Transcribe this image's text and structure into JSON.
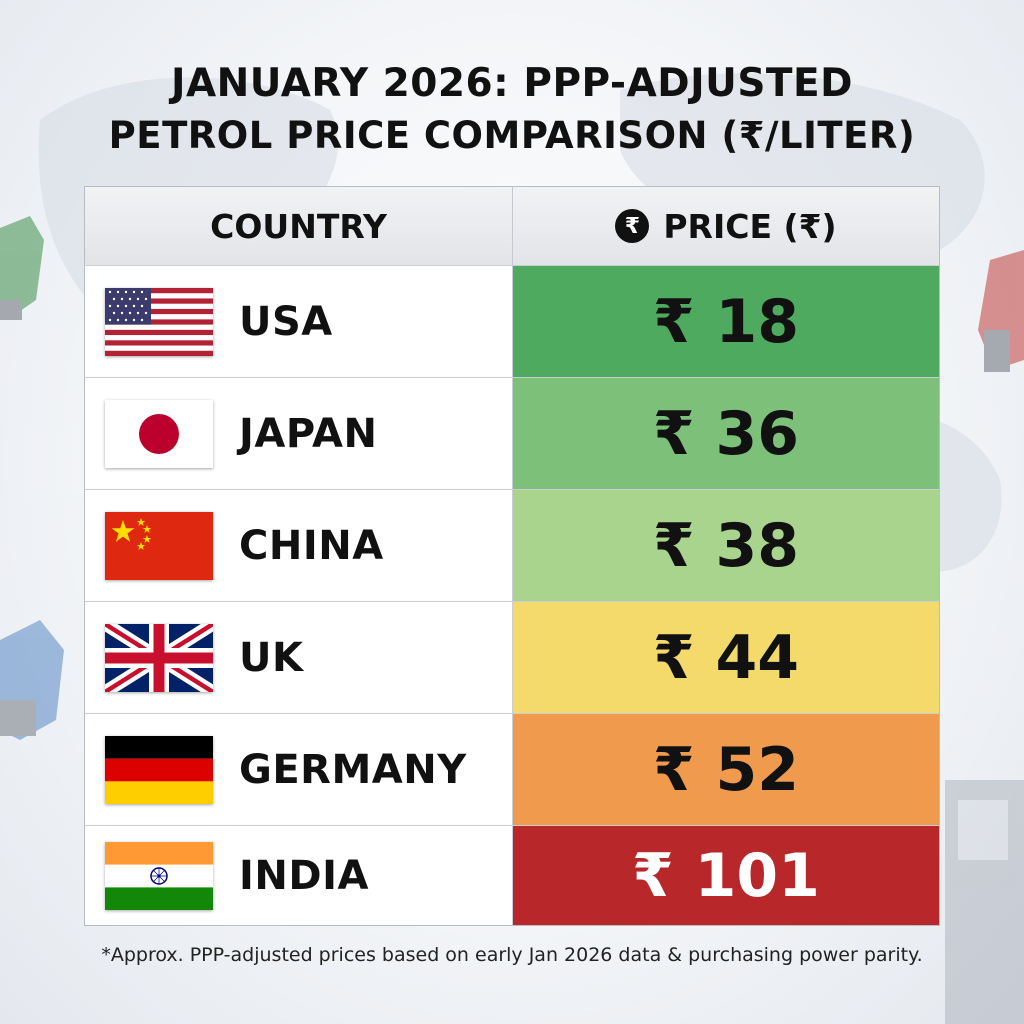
{
  "title_line1": "JANUARY 2026: PPP-ADJUSTED",
  "title_line2": "PETROL PRICE COMPARISON (₹/LITER)",
  "header": {
    "country": "COUNTRY",
    "price": "PRICE (₹)",
    "price_icon": "₹",
    "price_icon_name": "rupee-circle-icon"
  },
  "rows": [
    {
      "country": "USA",
      "price_label": "₹ 18",
      "flag": "usa-flag-icon",
      "color": "#4daa5e"
    },
    {
      "country": "JAPAN",
      "price_label": "₹ 36",
      "flag": "japan-flag-icon",
      "color": "#7cc07a"
    },
    {
      "country": "CHINA",
      "price_label": "₹ 38",
      "flag": "china-flag-icon",
      "color": "#a9d48e"
    },
    {
      "country": "UK",
      "price_label": "₹ 44",
      "flag": "uk-flag-icon",
      "color": "#f3da6b"
    },
    {
      "country": "GERMANY",
      "price_label": "₹ 52",
      "flag": "germany-flag-icon",
      "color": "#ef9a4c"
    },
    {
      "country": "INDIA",
      "price_label": "₹ 101",
      "flag": "india-flag-icon",
      "color": "#b8282a",
      "text_color": "#ffffff"
    }
  ],
  "chart_data": {
    "type": "table",
    "title": "JANUARY 2026: PPP-ADJUSTED PETROL PRICE COMPARISON (₹/LITER)",
    "columns": [
      "COUNTRY",
      "PRICE (₹)"
    ],
    "categories": [
      "USA",
      "JAPAN",
      "CHINA",
      "UK",
      "GERMANY",
      "INDIA"
    ],
    "values": [
      18,
      36,
      38,
      44,
      52,
      101
    ]
  },
  "footnote": "*Approx. PPP-adjusted prices based on early Jan 2026 data & purchasing power parity."
}
